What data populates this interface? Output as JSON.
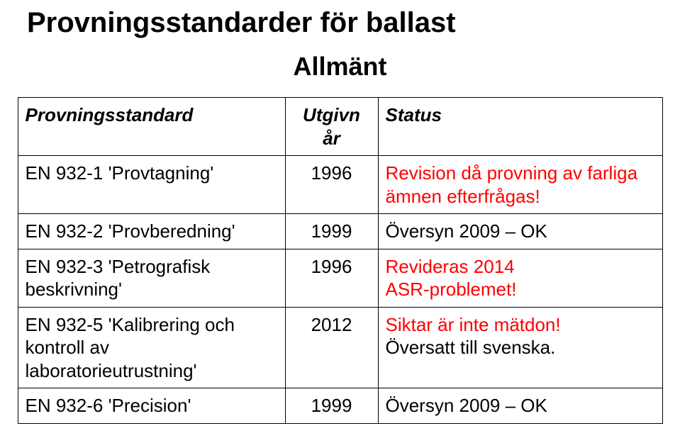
{
  "title": "Provningsstandarder för ballast",
  "subtitle": "Allmänt",
  "table": {
    "columns": {
      "standard": "Provningsstandard",
      "year": "Utgivn år",
      "status": "Status"
    },
    "rows": [
      {
        "standard": "EN 932-1 'Provtagning'",
        "year": "1996",
        "status_lines": [
          {
            "text": "Revision då provning av farliga ämnen efterfrågas!",
            "color": "#ff0000"
          }
        ]
      },
      {
        "standard": "EN 932-2 'Provberedning'",
        "year": "1999",
        "status_lines": [
          {
            "text": "Översyn 2009 – OK",
            "color": "#000000"
          }
        ]
      },
      {
        "standard": "EN 932-3 'Petrografisk beskrivning'",
        "year": "1996",
        "status_lines": [
          {
            "text": "Revideras 2014",
            "color": "#ff0000"
          },
          {
            "text": "ASR-problemet!",
            "color": "#ff0000"
          }
        ]
      },
      {
        "standard": "EN 932-5 'Kalibrering och kontroll av laboratorieutrustning'",
        "year": "2012",
        "status_lines": [
          {
            "text": "Siktar är inte mätdon!",
            "color": "#ff0000"
          },
          {
            "text": "Översatt till svenska.",
            "color": "#000000"
          }
        ]
      },
      {
        "standard": "EN 932-6 'Precision'",
        "year": "1999",
        "status_lines": [
          {
            "text": "Översyn 2009 – OK",
            "color": "#000000"
          }
        ]
      }
    ]
  }
}
